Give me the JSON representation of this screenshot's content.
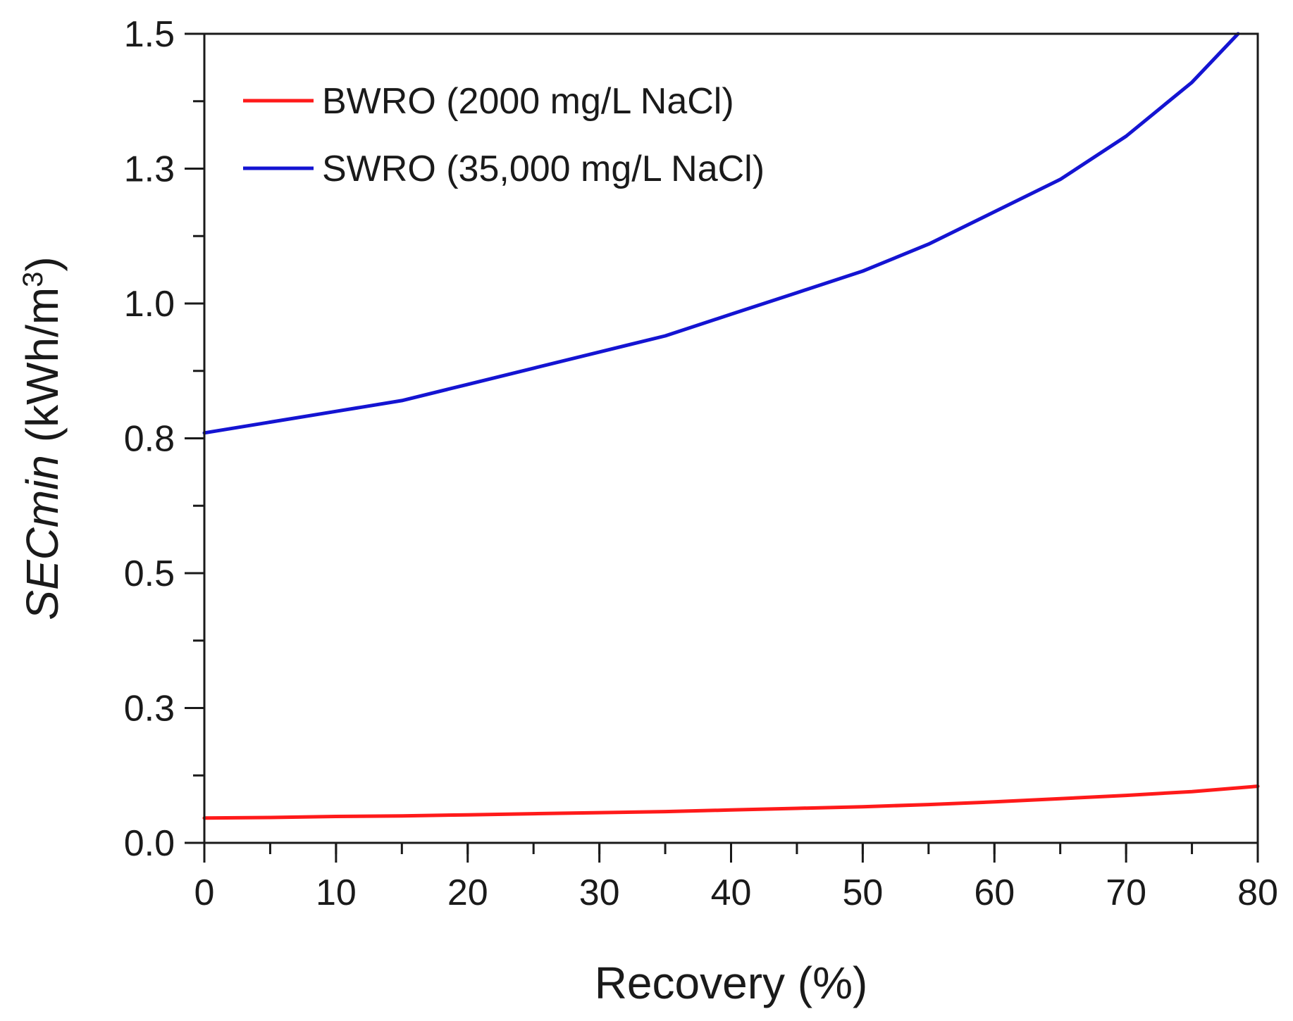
{
  "chart_data": {
    "type": "line",
    "title": "",
    "xlabel": "Recovery (%)",
    "ylabel": {
      "italic": "SECmin",
      "units": " (kWh/m",
      "sup": "3",
      "close": ")"
    },
    "xlim": [
      0,
      80
    ],
    "ylim": [
      0.0,
      1.5
    ],
    "x_ticks": [
      0,
      10,
      20,
      30,
      40,
      50,
      60,
      70,
      80
    ],
    "x_tick_labels": [
      "0",
      "10",
      "20",
      "30",
      "40",
      "50",
      "60",
      "70",
      "80"
    ],
    "x_minor_step": 5,
    "y_ticks": [
      0.0,
      0.25,
      0.5,
      0.75,
      1.0,
      1.25,
      1.5
    ],
    "y_tick_labels": [
      "0.0",
      "0.3",
      "0.5",
      "0.8",
      "1.0",
      "1.3",
      "1.5"
    ],
    "y_minor_step": 0.125,
    "grid": false,
    "legend_position": "top-left",
    "series": [
      {
        "name": "BWRO (2000 mg/L NaCl)",
        "color": "#ff1a1a",
        "x": [
          0,
          5,
          10,
          15,
          20,
          25,
          30,
          35,
          40,
          45,
          50,
          55,
          60,
          65,
          70,
          75,
          80
        ],
        "y": [
          0.046,
          0.047,
          0.049,
          0.05,
          0.052,
          0.054,
          0.056,
          0.058,
          0.061,
          0.064,
          0.067,
          0.071,
          0.076,
          0.082,
          0.088,
          0.095,
          0.105
        ]
      },
      {
        "name": "SWRO (35,000 mg/L NaCl)",
        "color": "#1414d2",
        "x": [
          0,
          5,
          10,
          15,
          20,
          25,
          30,
          35,
          40,
          45,
          50,
          55,
          60,
          65,
          70,
          75,
          78.5
        ],
        "y": [
          0.76,
          0.78,
          0.8,
          0.82,
          0.85,
          0.88,
          0.91,
          0.94,
          0.98,
          1.02,
          1.06,
          1.11,
          1.17,
          1.23,
          1.31,
          1.41,
          1.5
        ]
      }
    ]
  }
}
